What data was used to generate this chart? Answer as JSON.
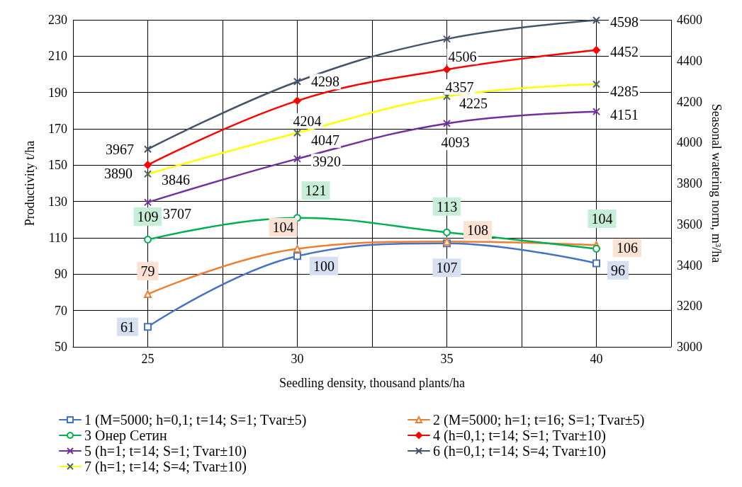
{
  "chart_data": {
    "type": "line",
    "xlabel": "Seedling density, thousand plants/ha",
    "ylabel": "Productivity t/ha",
    "y2label": "Seasonal watering norm, m³/ha",
    "x": [
      25,
      30,
      35,
      40
    ],
    "xlim": [
      22.5,
      42.5
    ],
    "xticks": [
      {
        "value": 22.5,
        "label": null
      },
      25,
      {
        "value": 27.5,
        "label": null
      },
      30,
      {
        "value": 32.5,
        "label": null
      },
      35,
      {
        "value": 37.5,
        "label": null
      },
      40,
      {
        "value": 42.5,
        "label": null
      }
    ],
    "ylim": [
      50,
      230
    ],
    "yticks": [
      50,
      70,
      90,
      110,
      130,
      150,
      170,
      190,
      210,
      230
    ],
    "y2lim": [
      3000,
      4600
    ],
    "y2ticks": [
      3000,
      3200,
      3400,
      3600,
      3800,
      4000,
      4200,
      4400,
      4600
    ],
    "grid": true,
    "legend": "bottom",
    "data_labels": true,
    "line_style": "solid",
    "series": [
      {
        "name": "1 (M=5000; h=0,1; t=14; S=1; Tvar±5)",
        "color": "#4472c4",
        "marker": "square",
        "values": [
          61,
          100,
          107,
          96
        ]
      },
      {
        "name": "2 (M=5000; h=1; t=16; S=1; Tvar±5)",
        "color": "#ed7d31",
        "marker": "triangle",
        "values": [
          79,
          104,
          108,
          106
        ]
      },
      {
        "name": "3 Онер Сетин",
        "color": "#00b050",
        "marker": "circle",
        "values": [
          109,
          121,
          113,
          104
        ]
      },
      {
        "name": "4 (h=0,1; t=14; S=1; Tvar±10)",
        "color": "#ff0000",
        "marker": "diamond",
        "axis": "y2",
        "values": [
          3890,
          4204,
          4357,
          4452
        ]
      },
      {
        "name": "5 (h=1; t=14; S=1; Tvar±10)",
        "color": "#7030a0",
        "marker": "cross",
        "axis": "y2",
        "values": [
          3707,
          3920,
          4093,
          4151
        ]
      },
      {
        "name": "6 (h=0,1; t=14; S=4; Tvar±10)",
        "color": "#44546a",
        "marker": "cross",
        "axis": "y2",
        "values": [
          3967,
          4298,
          4506,
          4598
        ]
      },
      {
        "name": "7 (h=1; t=14; S=4; Tvar±10)",
        "color": "#ffff00",
        "marker": "cross",
        "axis": "y2",
        "values": [
          3846,
          4047,
          4225,
          4285
        ]
      }
    ]
  }
}
